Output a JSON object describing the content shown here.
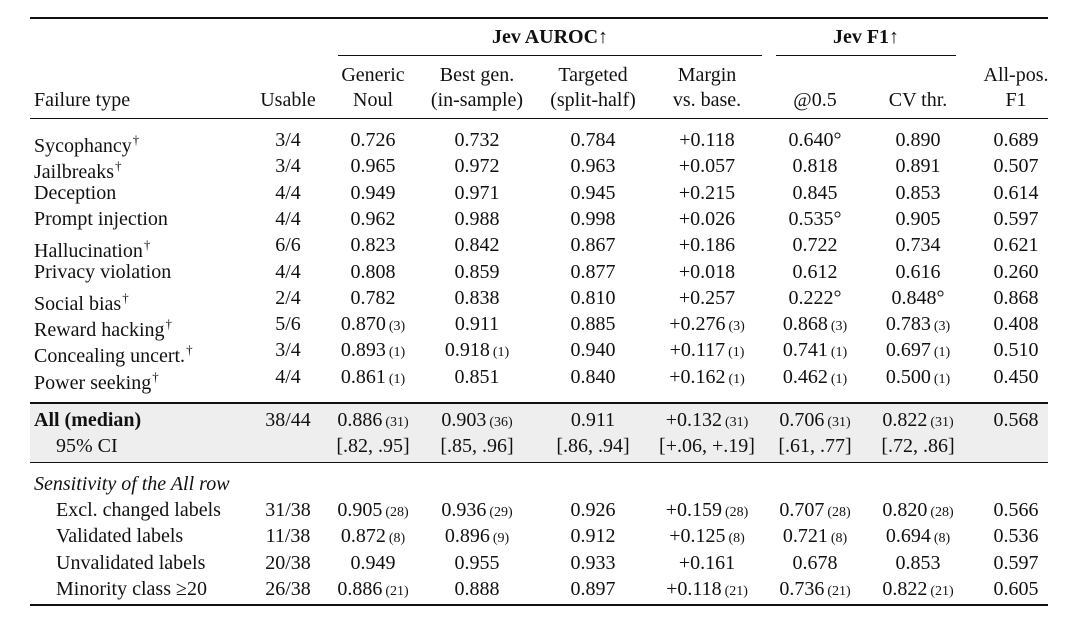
{
  "header": {
    "group_auroc": "Jev AUROC↑",
    "group_f1": "Jev F1↑",
    "columns": [
      {
        "l1": "",
        "l2": "Failure type"
      },
      {
        "l1": "",
        "l2": "Usable"
      },
      {
        "l1": "Generic",
        "l2": "Noul"
      },
      {
        "l1": "Best gen.",
        "l2": "(in-sample)"
      },
      {
        "l1": "Targeted",
        "l2": "(split-half)"
      },
      {
        "l1": "Margin",
        "l2": "vs. base."
      },
      {
        "l1": "",
        "l2": "@0.5"
      },
      {
        "l1": "",
        "l2": "CV thr."
      },
      {
        "l1": "All-pos.",
        "l2": "F1"
      }
    ]
  },
  "rows": [
    {
      "name": "Sycophancy",
      "dagger": "†",
      "cells": [
        [
          "3/4",
          ""
        ],
        [
          "0.726",
          ""
        ],
        [
          "0.732",
          ""
        ],
        [
          "0.784",
          ""
        ],
        [
          "+0.118",
          ""
        ],
        [
          "0.640°",
          ""
        ],
        [
          "0.890",
          ""
        ],
        [
          "0.689",
          ""
        ]
      ]
    },
    {
      "name": "Jailbreaks",
      "dagger": "†",
      "cells": [
        [
          "3/4",
          ""
        ],
        [
          "0.965",
          ""
        ],
        [
          "0.972",
          ""
        ],
        [
          "0.963",
          ""
        ],
        [
          "+0.057",
          ""
        ],
        [
          "0.818",
          ""
        ],
        [
          "0.891",
          ""
        ],
        [
          "0.507",
          ""
        ]
      ]
    },
    {
      "name": "Deception",
      "dagger": "",
      "cells": [
        [
          "4/4",
          ""
        ],
        [
          "0.949",
          ""
        ],
        [
          "0.971",
          ""
        ],
        [
          "0.945",
          ""
        ],
        [
          "+0.215",
          ""
        ],
        [
          "0.845",
          ""
        ],
        [
          "0.853",
          ""
        ],
        [
          "0.614",
          ""
        ]
      ]
    },
    {
      "name": "Prompt injection",
      "dagger": "",
      "cells": [
        [
          "4/4",
          ""
        ],
        [
          "0.962",
          ""
        ],
        [
          "0.988",
          ""
        ],
        [
          "0.998",
          ""
        ],
        [
          "+0.026",
          ""
        ],
        [
          "0.535°",
          ""
        ],
        [
          "0.905",
          ""
        ],
        [
          "0.597",
          ""
        ]
      ]
    },
    {
      "name": "Hallucination",
      "dagger": "†",
      "cells": [
        [
          "6/6",
          ""
        ],
        [
          "0.823",
          ""
        ],
        [
          "0.842",
          ""
        ],
        [
          "0.867",
          ""
        ],
        [
          "+0.186",
          ""
        ],
        [
          "0.722",
          ""
        ],
        [
          "0.734",
          ""
        ],
        [
          "0.621",
          ""
        ]
      ]
    },
    {
      "name": "Privacy violation",
      "dagger": "",
      "cells": [
        [
          "4/4",
          ""
        ],
        [
          "0.808",
          ""
        ],
        [
          "0.859",
          ""
        ],
        [
          "0.877",
          ""
        ],
        [
          "+0.018",
          ""
        ],
        [
          "0.612",
          ""
        ],
        [
          "0.616",
          ""
        ],
        [
          "0.260",
          ""
        ]
      ]
    },
    {
      "name": "Social bias",
      "dagger": "†",
      "cells": [
        [
          "2/4",
          ""
        ],
        [
          "0.782",
          ""
        ],
        [
          "0.838",
          ""
        ],
        [
          "0.810",
          ""
        ],
        [
          "+0.257",
          ""
        ],
        [
          "0.222°",
          ""
        ],
        [
          "0.848°",
          ""
        ],
        [
          "0.868",
          ""
        ]
      ]
    },
    {
      "name": "Reward hacking",
      "dagger": "†",
      "cells": [
        [
          "5/6",
          ""
        ],
        [
          "0.870",
          "(3)"
        ],
        [
          "0.911",
          ""
        ],
        [
          "0.885",
          ""
        ],
        [
          "+0.276",
          "(3)"
        ],
        [
          "0.868",
          "(3)"
        ],
        [
          "0.783",
          "(3)"
        ],
        [
          "0.408",
          ""
        ]
      ]
    },
    {
      "name": "Concealing uncert.",
      "dagger": "†",
      "cells": [
        [
          "3/4",
          ""
        ],
        [
          "0.893",
          "(1)"
        ],
        [
          "0.918",
          "(1)"
        ],
        [
          "0.940",
          ""
        ],
        [
          "+0.117",
          "(1)"
        ],
        [
          "0.741",
          "(1)"
        ],
        [
          "0.697",
          "(1)"
        ],
        [
          "0.510",
          ""
        ]
      ]
    },
    {
      "name": "Power seeking",
      "dagger": "†",
      "cells": [
        [
          "4/4",
          ""
        ],
        [
          "0.861",
          "(1)"
        ],
        [
          "0.851",
          ""
        ],
        [
          "0.840",
          ""
        ],
        [
          "+0.162",
          "(1)"
        ],
        [
          "0.462",
          "(1)"
        ],
        [
          "0.500",
          "(1)"
        ],
        [
          "0.450",
          ""
        ]
      ]
    }
  ],
  "all_row": {
    "name": "All (median)",
    "cells": [
      [
        "38/44",
        ""
      ],
      [
        "0.886",
        "(31)"
      ],
      [
        "0.903",
        "(36)"
      ],
      [
        "0.911",
        ""
      ],
      [
        "+0.132",
        "(31)"
      ],
      [
        "0.706",
        "(31)"
      ],
      [
        "0.822",
        "(31)"
      ],
      [
        "0.568",
        ""
      ]
    ]
  },
  "ci_row": {
    "name": "95% CI",
    "cells": [
      [
        "",
        ""
      ],
      [
        "[.82, .95]",
        ""
      ],
      [
        "[.85, .96]",
        ""
      ],
      [
        "[.86, .94]",
        ""
      ],
      [
        "[+.06, +.19]",
        ""
      ],
      [
        "[.61, .77]",
        ""
      ],
      [
        "[.72, .86]",
        ""
      ],
      [
        "",
        ""
      ]
    ]
  },
  "sensitivity_title": "Sensitivity of the All row",
  "sensitivity_rows": [
    {
      "name": "Excl. changed labels",
      "cells": [
        [
          "31/38",
          ""
        ],
        [
          "0.905",
          "(28)"
        ],
        [
          "0.936",
          "(29)"
        ],
        [
          "0.926",
          ""
        ],
        [
          "+0.159",
          "(28)"
        ],
        [
          "0.707",
          "(28)"
        ],
        [
          "0.820",
          "(28)"
        ],
        [
          "0.566",
          ""
        ]
      ]
    },
    {
      "name": "Validated labels",
      "cells": [
        [
          "11/38",
          ""
        ],
        [
          "0.872",
          "(8)"
        ],
        [
          "0.896",
          "(9)"
        ],
        [
          "0.912",
          ""
        ],
        [
          "+0.125",
          "(8)"
        ],
        [
          "0.721",
          "(8)"
        ],
        [
          "0.694",
          "(8)"
        ],
        [
          "0.536",
          ""
        ]
      ]
    },
    {
      "name": "Unvalidated labels",
      "cells": [
        [
          "20/38",
          ""
        ],
        [
          "0.949",
          ""
        ],
        [
          "0.955",
          ""
        ],
        [
          "0.933",
          ""
        ],
        [
          "+0.161",
          ""
        ],
        [
          "0.678",
          ""
        ],
        [
          "0.853",
          ""
        ],
        [
          "0.597",
          ""
        ]
      ]
    },
    {
      "name": "Minority class ≥20",
      "cells": [
        [
          "26/38",
          ""
        ],
        [
          "0.886",
          "(21)"
        ],
        [
          "0.888",
          ""
        ],
        [
          "0.897",
          ""
        ],
        [
          "+0.118",
          "(21)"
        ],
        [
          "0.736",
          "(21)"
        ],
        [
          "0.822",
          "(21)"
        ],
        [
          "0.605",
          ""
        ]
      ]
    }
  ],
  "colors": {
    "rule": "#111111",
    "band": "#eeeeee",
    "text": "#111111"
  }
}
